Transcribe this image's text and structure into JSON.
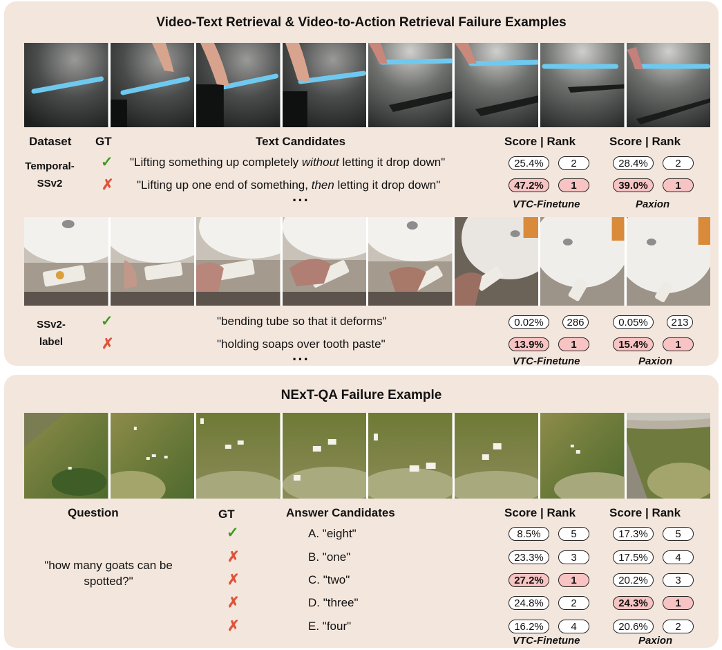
{
  "panel1": {
    "title": "Video-Text Retrieval & Video-to-Action Retrieval  Failure Examples",
    "headers": {
      "dataset": "Dataset",
      "gt": "GT",
      "candidates": "Text Candidates",
      "score_rank_1": "Score | Rank",
      "score_rank_2": "Score | Rank"
    },
    "example1": {
      "dataset_line1": "Temporal-",
      "dataset_line2": "SSv2",
      "row1": {
        "gt": "✓",
        "pre": "\"Lifting something up completely ",
        "em": "without",
        "post": " letting it drop down\"",
        "vtc_score": "25.4%",
        "vtc_rank": "2",
        "paxion_score": "28.4%",
        "paxion_rank": "2"
      },
      "row2": {
        "gt": "✗",
        "pre": "\"Lifting up one end of something, ",
        "em": "then",
        "post": " letting it drop down\"",
        "vtc_score": "47.2%",
        "vtc_rank": "1",
        "paxion_score": "39.0%",
        "paxion_rank": "1"
      },
      "ellipsis": "···",
      "caption_vtc": "VTC-Finetune",
      "caption_paxion": "Paxion"
    },
    "example2": {
      "dataset_line1": "SSv2-",
      "dataset_line2": "label",
      "row1": {
        "gt": "✓",
        "text": "\"bending tube so that it deforms\"",
        "vtc_score": "0.02%",
        "vtc_rank": "286",
        "paxion_score": "0.05%",
        "paxion_rank": "213"
      },
      "row2": {
        "gt": "✗",
        "text": "\"holding soaps over tooth paste\"",
        "vtc_score": "13.9%",
        "vtc_rank": "1",
        "paxion_score": "15.4%",
        "paxion_rank": "1"
      },
      "ellipsis": "···",
      "caption_vtc": "VTC-Finetune",
      "caption_paxion": "Paxion"
    }
  },
  "panel2": {
    "title": "NExT-QA  Failure Example",
    "headers": {
      "question": "Question",
      "gt": "GT",
      "candidates": "Answer Candidates",
      "score_rank_1": "Score | Rank",
      "score_rank_2": "Score | Rank"
    },
    "question_line1": "\"how many goats can be",
    "question_line2": "spotted?\"",
    "rows": [
      {
        "gt": "✓",
        "answer": "A. \"eight\"",
        "vtc_score": "8.5%",
        "vtc_rank": "5",
        "paxion_score": "17.3%",
        "paxion_rank": "5"
      },
      {
        "gt": "✗",
        "answer": "B. \"one\"",
        "vtc_score": "23.3%",
        "vtc_rank": "3",
        "paxion_score": "17.5%",
        "paxion_rank": "4"
      },
      {
        "gt": "✗",
        "answer": "C. \"two\"",
        "vtc_score": "27.2%",
        "vtc_rank": "1",
        "paxion_score": "20.2%",
        "paxion_rank": "3"
      },
      {
        "gt": "✗",
        "answer": "D. \"three\"",
        "vtc_score": "24.8%",
        "vtc_rank": "2",
        "paxion_score": "24.3%",
        "paxion_rank": "1"
      },
      {
        "gt": "✗",
        "answer": "E. \"four\"",
        "vtc_score": "16.2%",
        "vtc_rank": "4",
        "paxion_score": "20.6%",
        "paxion_rank": "2"
      }
    ],
    "caption_vtc": "VTC-Finetune",
    "caption_paxion": "Paxion"
  }
}
